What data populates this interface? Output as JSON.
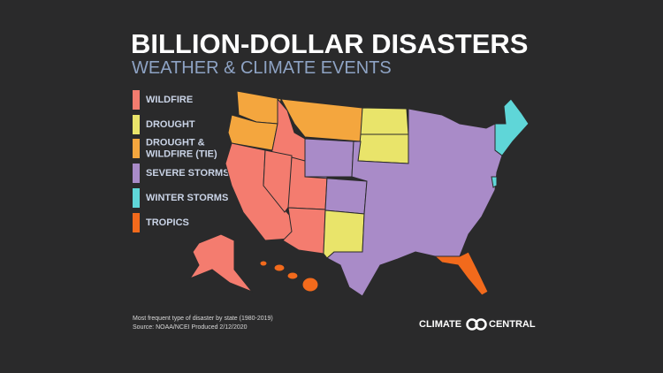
{
  "header": {
    "title": "BILLION-DOLLAR DISASTERS",
    "subtitle": "WEATHER & CLIMATE EVENTS"
  },
  "legend": [
    {
      "lines": [
        "WILDFIRE"
      ],
      "color": "#f47c6f"
    },
    {
      "lines": [
        "DROUGHT"
      ],
      "color": "#e9e46a"
    },
    {
      "lines": [
        "DROUGHT &",
        "WILDFIRE (TIE)"
      ],
      "color": "#f4a63e"
    },
    {
      "lines": [
        "SEVERE STORMS"
      ],
      "color": "#a98bc8"
    },
    {
      "lines": [
        "WINTER STORMS"
      ],
      "color": "#5fd6d8"
    },
    {
      "lines": [
        "TROPICS"
      ],
      "color": "#f26a1c"
    }
  ],
  "footnote": [
    "Most frequent type of disaster by state (1980-2019)",
    "Source: NOAA/NCEI Produced 2/12/2020"
  ],
  "logo": {
    "left": "CLIMATE",
    "right": "CENTRAL"
  }
}
